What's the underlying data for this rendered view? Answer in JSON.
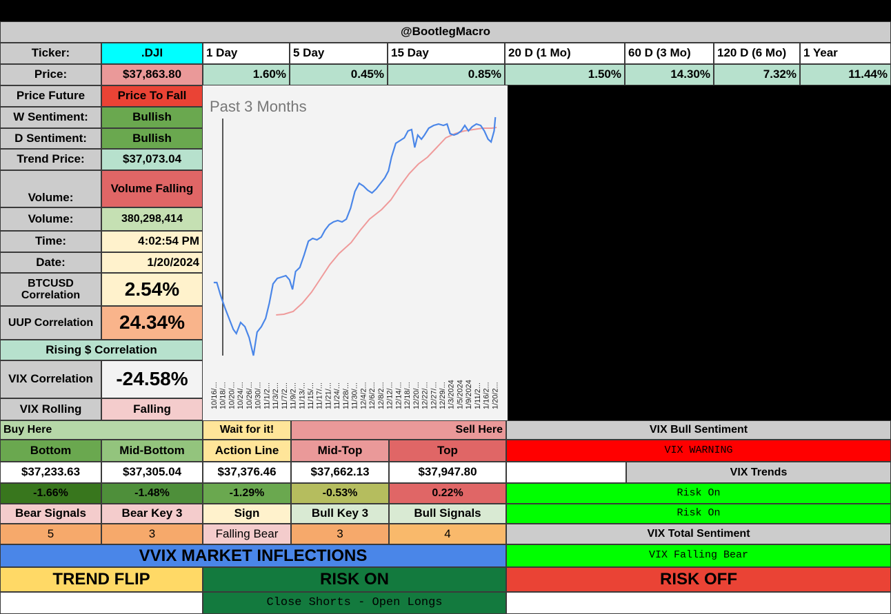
{
  "title": "@BootlegMacro",
  "labels": {
    "ticker": "Ticker:",
    "price": "Price:",
    "price_future": "Price Future",
    "w_sentiment": "W Sentiment:",
    "d_sentiment": "D Sentiment:",
    "trend_price": "Trend Price:",
    "volume_trend": "Volume:",
    "volume": "Volume:",
    "time": "Time:",
    "date": "Date:",
    "btcusd_corr": "BTCUSD Correlation",
    "uup_corr": "UUP Correlation",
    "rising_corr": "Rising $ Correlation",
    "vix_corr": "VIX Correlation",
    "vix_rolling": "VIX Rolling"
  },
  "values": {
    "ticker": ".DJI",
    "price": "$37,863.80",
    "price_future": "Price To Fall",
    "w_sentiment": "Bullish",
    "d_sentiment": "Bullish",
    "trend_price": "$37,073.04",
    "volume_trend": "Volume Falling",
    "volume": "380,298,414",
    "time": "4:02:54 PM",
    "date": "1/20/2024",
    "btcusd_corr": "2.54%",
    "uup_corr": "24.34%",
    "vix_corr": "-24.58%",
    "vix_rolling": "Falling"
  },
  "periods": [
    {
      "label": "1 Day",
      "value": "1.60%"
    },
    {
      "label": "5 Day",
      "value": "0.45%"
    },
    {
      "label": "15 Day",
      "value": "0.85%"
    },
    {
      "label": "20 D (1 Mo)",
      "value": "1.50%"
    },
    {
      "label": "60 D (3 Mo)",
      "value": "14.30%"
    },
    {
      "label": "120 D (6 Mo)",
      "value": "7.32%"
    },
    {
      "label": "1 Year",
      "value": "11.44%"
    }
  ],
  "chart": {
    "title": "Past 3 Months",
    "x_labels": [
      "10/16/...",
      "10/18/...",
      "10/20/...",
      "10/24/...",
      "10/26/...",
      "10/30/...",
      "11/1/2...",
      "11/3/2...",
      "11/7/2...",
      "11/9/2...",
      "11/13/...",
      "11/15/...",
      "11/17/...",
      "11/21/...",
      "11/24/...",
      "11/28/...",
      "11/30/...",
      "12/4/2...",
      "12/6/2...",
      "12/8/2...",
      "12/12/...",
      "12/14/...",
      "12/18/...",
      "12/20/...",
      "12/22/...",
      "12/27/...",
      "12/29/...",
      "1/3/2024",
      "1/5/2024",
      "1/9/2024",
      "1/11/2...",
      "1/16/2...",
      "1/20/2..."
    ],
    "price_color": "#4a86e8",
    "trend_color": "#ef9a9a"
  },
  "levels": {
    "buy_here": "Buy Here",
    "wait": "Wait for it!",
    "sell_here": "Sell Here",
    "headers": [
      "Bottom",
      "Mid-Bottom",
      "Action Line",
      "Mid-Top",
      "Top"
    ],
    "prices": [
      "$37,233.63",
      "$37,305.04",
      "$37,376.46",
      "$37,662.13",
      "$37,947.80"
    ],
    "pcts": [
      "-1.66%",
      "-1.48%",
      "-1.29%",
      "-0.53%",
      "0.22%"
    ]
  },
  "signals": {
    "headers": [
      "Bear Signals",
      "Bear Key 3",
      "Sign",
      "Bull Key 3",
      "Bull Signals"
    ],
    "values": [
      "5",
      "3",
      "Falling Bear",
      "3",
      "4"
    ]
  },
  "vix": {
    "bull_sentiment": "VIX Bull Sentiment",
    "warning": "VIX WARNING",
    "trends": "VIX Trends",
    "trend_1": "Risk On",
    "trend_2": "Risk On",
    "total_sentiment": "VIX Total Sentiment",
    "falling_bear": "VIX Falling Bear"
  },
  "inflections": {
    "title": "VVIX MARKET INFLECTIONS",
    "trend_flip": "TREND FLIP",
    "risk_on": "RISK ON",
    "risk_off": "RISK OFF",
    "action": "Close Shorts - Open Longs"
  }
}
